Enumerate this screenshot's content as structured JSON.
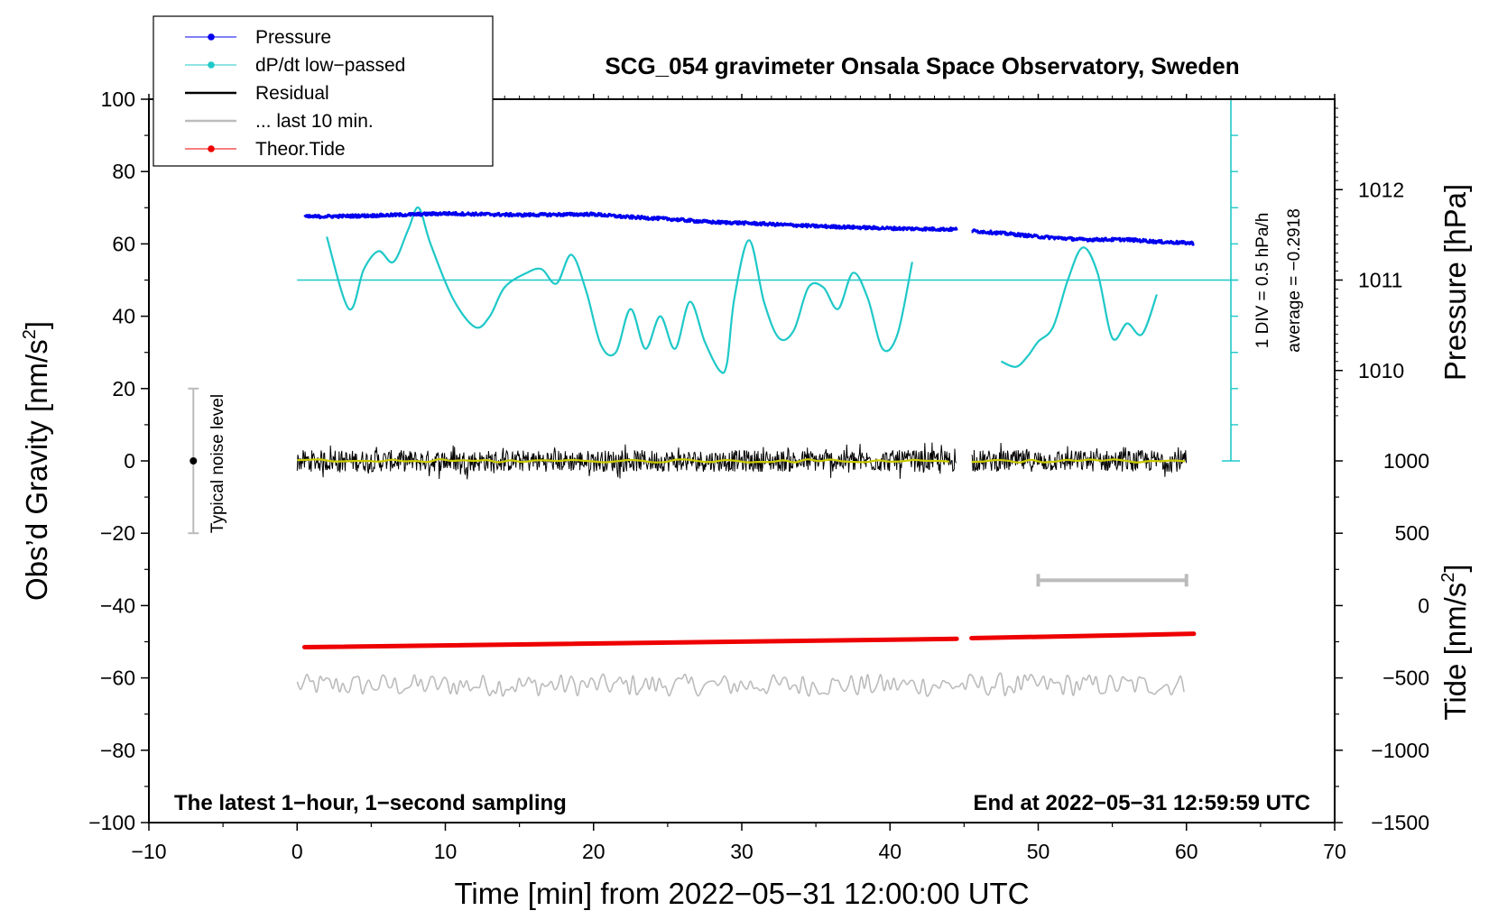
{
  "chart_data": {
    "type": "line",
    "title": "SCG_054 gravimeter Onsala Space Observatory, Sweden",
    "xlabel": "Time [min] from 2022−05−31 12:00:00 UTC",
    "ylabel_left": "Obs’d Gravity [nm/s",
    "ylabel_left_sup": "2",
    "ylabel_left_close": "]",
    "ylabel_right_pressure": "Pressure [hPa]",
    "ylabel_right_tide": "Tide [nm/s",
    "ylabel_right_tide_sup": "2",
    "ylabel_right_tide_close": "]",
    "xlim": [
      -10,
      70
    ],
    "ylim": [
      -100,
      100
    ],
    "x_ticks": [
      -10,
      0,
      10,
      20,
      30,
      40,
      50,
      60,
      70
    ],
    "x_tick_labels": [
      "−10",
      "0",
      "10",
      "20",
      "30",
      "40",
      "50",
      "60",
      "70"
    ],
    "y_ticks": [
      100,
      80,
      60,
      40,
      20,
      0,
      -20,
      -40,
      -60,
      -80,
      -100
    ],
    "y_tick_labels": [
      "100",
      "80",
      "60",
      "40",
      "20",
      "0",
      "−20",
      "−40",
      "−60",
      "−80",
      "−100"
    ],
    "pressure_axis": {
      "ticks": [
        1012,
        1011,
        1010
      ],
      "labels": [
        "1012",
        "1011",
        "1010"
      ],
      "gravity_equiv_at_1010": 25,
      "gravity_per_hPa": 25
    },
    "tide_axis": {
      "ticks": [
        1000,
        500,
        0,
        -500,
        -1000,
        -1500
      ],
      "labels": [
        "1000",
        "500",
        "0",
        "−500",
        "−1000",
        "−1500"
      ],
      "gravity_at_minus1500": -100,
      "gravity_per_nms2": 0.04
    },
    "legend": [
      {
        "label": "Pressure",
        "color": "#0000ee",
        "marker": true
      },
      {
        "label": "dP/dt low−passed",
        "color": "#1fc8c8",
        "marker": true
      },
      {
        "label": "Residual",
        "color": "#000000",
        "marker": false
      },
      {
        "label": "... last 10 min.",
        "color": "#bbbbbb",
        "marker": false
      },
      {
        "label": "Theor.Tide",
        "color": "#ee0000",
        "marker": true
      }
    ],
    "series": [
      {
        "name": "Pressure",
        "color": "#0000ee",
        "segments": [
          {
            "x": [
              0.5,
              5,
              10,
              15,
              20,
              22,
              25,
              28,
              30,
              35,
              40,
              44.5
            ],
            "y": [
              67.5,
              67.8,
              68.4,
              68.0,
              68.2,
              67.5,
              66.9,
              66.0,
              65.8,
              64.9,
              64.3,
              64.0
            ]
          },
          {
            "x": [
              45.5,
              48,
              50,
              53,
              56,
              58,
              60.5
            ],
            "y": [
              63.6,
              62.8,
              62.0,
              61.2,
              61.2,
              60.6,
              60.2
            ]
          }
        ]
      },
      {
        "name": "dP/dt low-passed",
        "color": "#1fc8c8",
        "baseline_y": 50,
        "segments": [
          {
            "x": [
              2,
              3.5,
              4.5,
              5.5,
              6.5,
              7.5,
              8.2,
              9,
              10.5,
              12,
              13,
              14,
              15.5,
              16.5,
              17.5,
              18.5,
              19.5,
              20.5,
              21.5,
              22.5,
              23.5,
              24.5,
              25.5,
              26.5,
              27.5,
              28.5,
              29,
              29.5,
              30.5,
              31.5,
              32.5,
              33.5,
              34.5,
              35.5,
              36.5,
              37.5,
              38.5,
              39.5,
              40.5,
              41.5
            ],
            "y": [
              62,
              42,
              53,
              58,
              55,
              64,
              70,
              60,
              45,
              37,
              40,
              48,
              52,
              53,
              49,
              57,
              47,
              32,
              30,
              42,
              31,
              40,
              31,
              44,
              33,
              25,
              27,
              45,
              61,
              44,
              34,
              36,
              48,
              48,
              42,
              52,
              45,
              31,
              35,
              55
            ]
          },
          {
            "x": [
              47.5,
              48.5,
              49.3,
              50,
              51,
              52,
              53,
              54,
              55,
              56,
              57,
              58
            ],
            "y": [
              27.5,
              26,
              29,
              33,
              37,
              50,
              59,
              52,
              34,
              38,
              35,
              46
            ]
          }
        ]
      },
      {
        "name": "Residual",
        "color": "#000000",
        "amplitude": 3,
        "segments": [
          {
            "x": [
              0,
              44.5
            ]
          },
          {
            "x": [
              45.5,
              60
            ]
          }
        ]
      },
      {
        "name": "Residual smoothed",
        "color": "#cccc00",
        "segments": [
          {
            "x": [
              0,
              44.5
            ]
          },
          {
            "x": [
              45.5,
              60
            ]
          }
        ]
      },
      {
        "name": "... last 10 min.",
        "color": "#bbbbbb",
        "offset_y": -62,
        "amplitude": 3,
        "segments": [
          {
            "x": [
              0,
              60
            ]
          }
        ]
      },
      {
        "name": "Theor.Tide",
        "color": "#ee0000",
        "segments": [
          {
            "x": [
              0.5,
              44.5
            ],
            "y": [
              -51.5,
              -49.2
            ]
          },
          {
            "x": [
              45.5,
              60.5
            ],
            "y": [
              -49.0,
              -47.8
            ]
          }
        ]
      }
    ],
    "reference_bar": {
      "x0": 50,
      "x1": 60,
      "y": -33,
      "color": "#bbbbbb"
    },
    "noise_bar": {
      "x": -7,
      "ymin": -20,
      "ymax": 20,
      "label": "Typical noise level"
    },
    "pressure_scale": {
      "x": 63,
      "ymin": 0,
      "ymax": 100,
      "label1": "1 DIV = 0.5 hPa/h",
      "label2": "average = −0.2918"
    },
    "footer_left": "The latest 1−hour, 1−second sampling",
    "footer_right": "End at 2022−05−31 12:59:59 UTC"
  }
}
